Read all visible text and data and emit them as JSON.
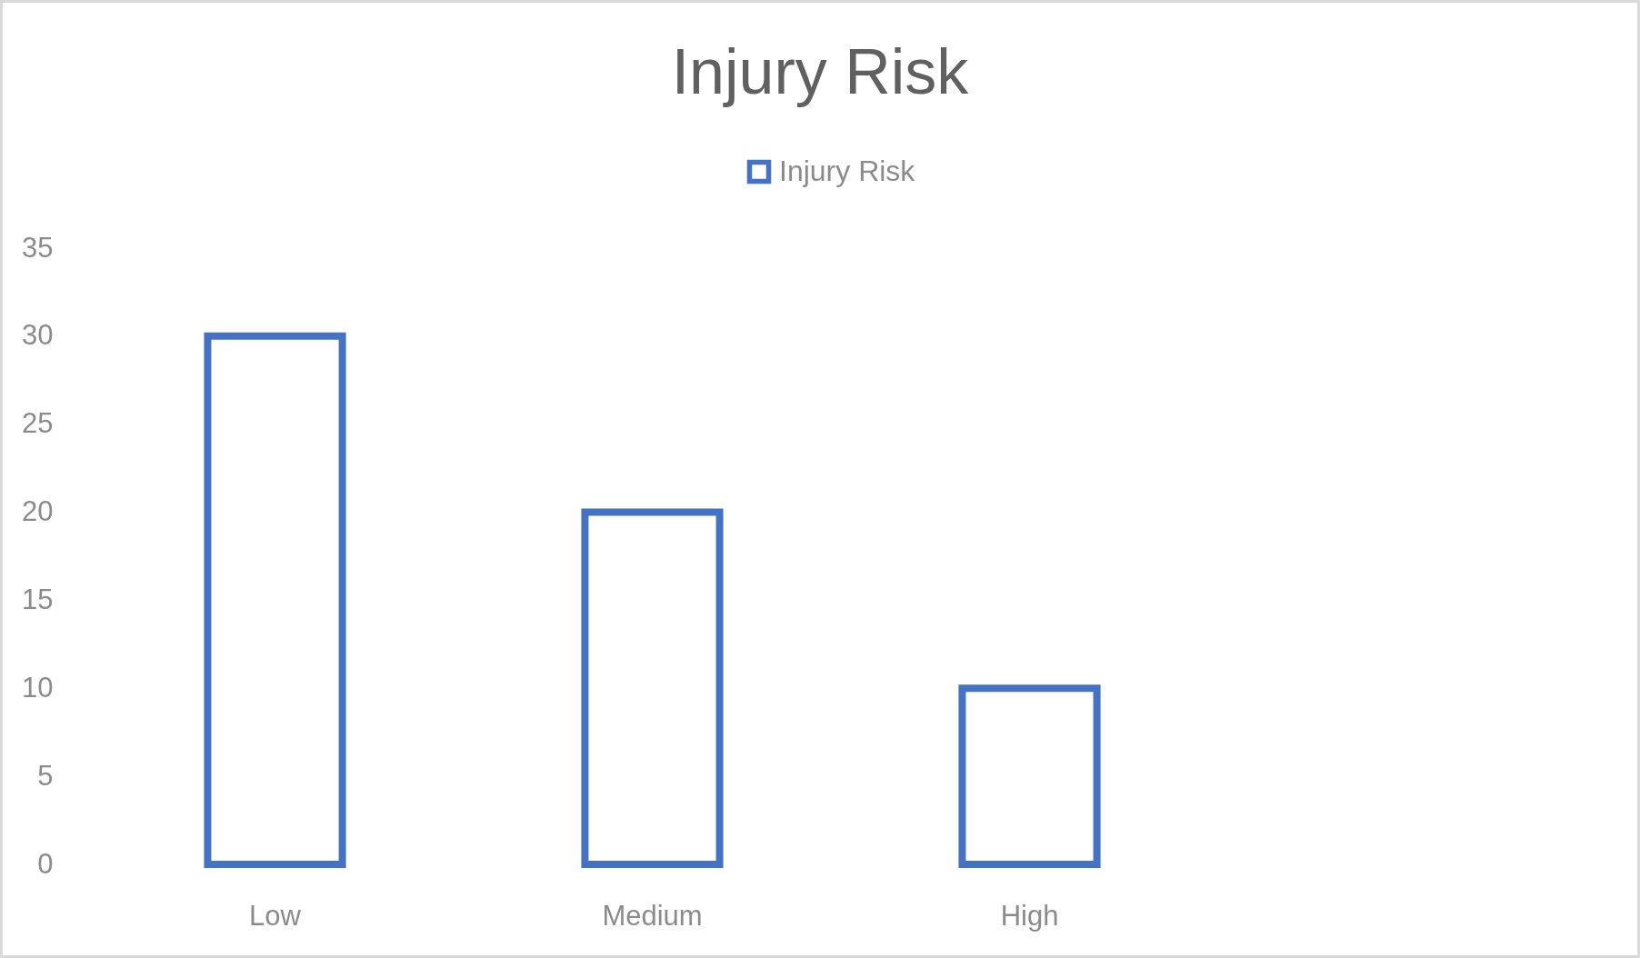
{
  "chart_data": {
    "type": "bar",
    "title": "Injury Risk",
    "categories": [
      "Low",
      "Medium",
      "High"
    ],
    "series": [
      {
        "name": "Injury Risk",
        "color": "#4472c4",
        "values": [
          30,
          20,
          10
        ]
      }
    ],
    "ylim": [
      0,
      35
    ],
    "yticks": [
      0,
      5,
      10,
      15,
      20,
      25,
      30,
      35
    ],
    "grid": false,
    "legend": "top"
  }
}
